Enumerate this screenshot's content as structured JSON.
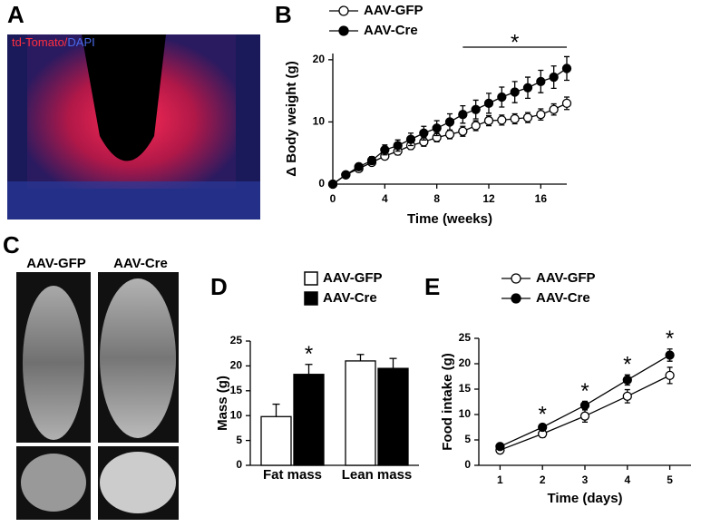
{
  "panel_labels": [
    "A",
    "B",
    "C",
    "D",
    "E"
  ],
  "panel_a": {
    "stain_red": "td-Tomato/",
    "stain_blue": "DAPI"
  },
  "panel_c": {
    "columns": [
      "AAV-GFP",
      "AAV-Cre"
    ]
  },
  "chart_data": [
    {
      "type": "line",
      "x_label": "Time (weeks)",
      "y_label": "Δ Body weight (g)",
      "x": [
        0,
        1,
        2,
        3,
        4,
        5,
        6,
        7,
        8,
        9,
        10,
        11,
        12,
        13,
        14,
        15,
        16,
        17,
        18
      ],
      "series": [
        {
          "name": "AAV-GFP",
          "color": "#ffffff",
          "values": [
            0,
            1.5,
            2.5,
            3.5,
            4.5,
            5.3,
            6.2,
            6.8,
            7.5,
            8,
            8.5,
            9.4,
            10.2,
            10.3,
            10.5,
            10.7,
            11.2,
            12,
            13
          ],
          "errors": [
            0,
            0.3,
            0.4,
            0.5,
            0.5,
            0.6,
            0.6,
            0.7,
            0.7,
            0.7,
            0.8,
            0.8,
            0.8,
            0.8,
            0.8,
            0.8,
            0.9,
            0.9,
            1
          ]
        },
        {
          "name": "AAV-Cre",
          "color": "#000000",
          "values": [
            0,
            1.5,
            2.8,
            3.8,
            5.5,
            6.2,
            7.2,
            8.2,
            9,
            10,
            11.2,
            12,
            13,
            14,
            14.8,
            15.5,
            16.5,
            17.2,
            18.6
          ],
          "errors": [
            0,
            0.4,
            0.5,
            0.6,
            0.8,
            0.9,
            1,
            1.1,
            1.2,
            1.3,
            1.4,
            1.5,
            1.6,
            1.6,
            1.7,
            1.7,
            1.8,
            1.8,
            1.9
          ]
        }
      ],
      "xlim": [
        0,
        18
      ],
      "xticks": [
        0,
        4,
        8,
        12,
        16
      ],
      "ylim": [
        0,
        21
      ],
      "yticks": [
        0,
        10,
        20
      ],
      "significance_marker": "*",
      "significance_span": [
        10,
        18
      ]
    },
    {
      "type": "bar",
      "y_label": "Mass (g)",
      "categories": [
        "Fat mass",
        "Lean mass"
      ],
      "series": [
        {
          "name": "AAV-GFP",
          "color": "#ffffff",
          "values": [
            9.8,
            21
          ],
          "errors": [
            2.5,
            1.3
          ]
        },
        {
          "name": "AAV-Cre",
          "color": "#000000",
          "values": [
            18.3,
            19.5
          ],
          "errors": [
            2,
            2
          ]
        }
      ],
      "ylim": [
        0,
        25
      ],
      "yticks": [
        0,
        5,
        10,
        15,
        20,
        25
      ],
      "significance_marker": "*",
      "significant": [
        true,
        false
      ]
    },
    {
      "type": "line",
      "x_label": "Time (days)",
      "y_label": "Food intake (g)",
      "x": [
        1,
        2,
        3,
        4,
        5
      ],
      "series": [
        {
          "name": "AAV-GFP",
          "color": "#ffffff",
          "values": [
            3,
            6.2,
            9.7,
            13.6,
            17.7
          ],
          "errors": [
            0.3,
            0.7,
            1.2,
            1.3,
            1.6
          ]
        },
        {
          "name": "AAV-Cre",
          "color": "#000000",
          "values": [
            3.7,
            7.5,
            11.8,
            16.8,
            21.7
          ],
          "errors": [
            0.3,
            0.5,
            0.8,
            1,
            1.2
          ]
        }
      ],
      "xlim": [
        0.5,
        5.5
      ],
      "xticks": [
        1,
        2,
        3,
        4,
        5
      ],
      "ylim": [
        0,
        25
      ],
      "yticks": [
        0,
        5,
        10,
        15,
        20,
        25
      ],
      "significance_marker": "*",
      "significant": [
        false,
        true,
        true,
        true,
        true
      ]
    }
  ]
}
